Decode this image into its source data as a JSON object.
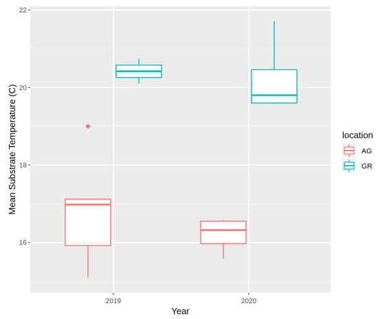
{
  "chart_data": {
    "type": "boxplot",
    "title": "",
    "xlabel": "Year",
    "ylabel": "Mean Substrate Temperature (C)",
    "categories": [
      "2019",
      "2020"
    ],
    "ylim": [
      14.7,
      22.1
    ],
    "yticks": [
      16,
      18,
      20,
      22
    ],
    "grid": true,
    "legend": {
      "title": "location",
      "position": "right"
    },
    "series": [
      {
        "name": "AG",
        "color": "#F8766D",
        "boxes": [
          {
            "category": "2019",
            "min": 15.1,
            "q1": 15.92,
            "median": 16.98,
            "q3": 17.12,
            "max": 17.12,
            "outliers": [
              19.0
            ]
          },
          {
            "category": "2020",
            "min": 15.58,
            "q1": 15.97,
            "median": 16.32,
            "q3": 16.55,
            "max": 16.58,
            "outliers": []
          }
        ]
      },
      {
        "name": "GR",
        "color": "#00BFC4",
        "boxes": [
          {
            "category": "2019",
            "min": 20.1,
            "q1": 20.26,
            "median": 20.42,
            "q3": 20.58,
            "max": 20.74,
            "outliers": []
          },
          {
            "category": "2020",
            "min": 19.58,
            "q1": 19.6,
            "median": 19.8,
            "q3": 20.46,
            "max": 21.72,
            "outliers": []
          }
        ]
      }
    ]
  }
}
